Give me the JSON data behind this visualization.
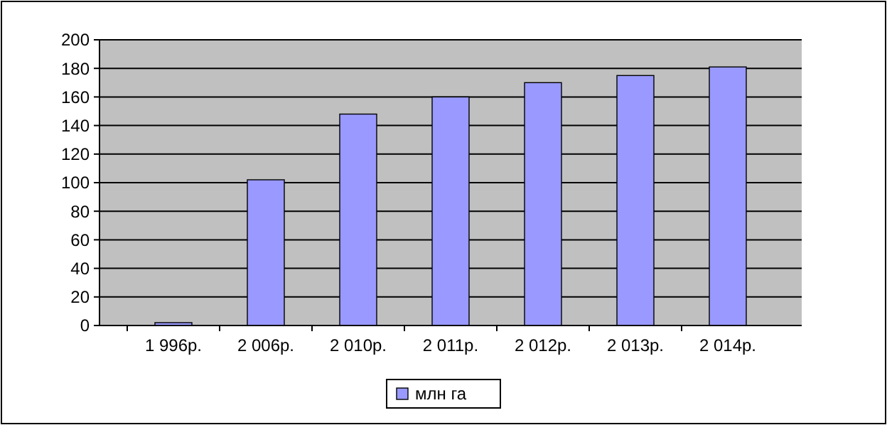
{
  "chart_data": {
    "type": "bar",
    "categories": [
      "1 996р.",
      "2 006р.",
      "2 010р.",
      "2 011р.",
      "2 012р.",
      "2 013р.",
      "2 014р."
    ],
    "series": [
      {
        "name": "млн га",
        "color": "#9999ff",
        "values": [
          2,
          102,
          148,
          160,
          170,
          175,
          181
        ]
      }
    ],
    "ylim": [
      0,
      200
    ],
    "yticks": [
      0,
      20,
      40,
      60,
      80,
      100,
      120,
      140,
      160,
      180,
      200
    ],
    "grid": "y",
    "legend": "bottom"
  }
}
